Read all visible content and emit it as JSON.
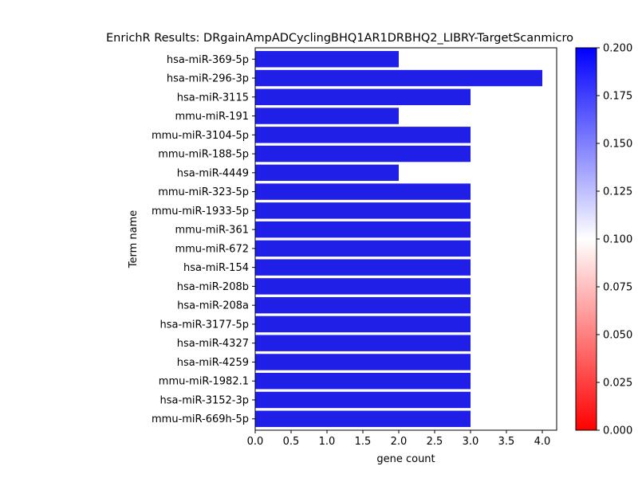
{
  "chart_data": {
    "type": "bar",
    "orientation": "horizontal",
    "title": "EnrichR Results: DRgainAmpADCyclingBHQ1AR1DRBHQ2_LIBRY-TargetScanmicro",
    "xlabel": "gene count",
    "ylabel": "Term name",
    "xlim": [
      0,
      4.2
    ],
    "xticks": [
      "0.0",
      "0.5",
      "1.0",
      "1.5",
      "2.0",
      "2.5",
      "3.0",
      "3.5",
      "4.0"
    ],
    "categories": [
      "hsa-miR-369-5p",
      "hsa-miR-296-3p",
      "hsa-miR-3115",
      "mmu-miR-191",
      "mmu-miR-3104-5p",
      "mmu-miR-188-5p",
      "hsa-miR-4449",
      "mmu-miR-323-5p",
      "mmu-miR-1933-5p",
      "mmu-miR-361",
      "mmu-miR-672",
      "hsa-miR-154",
      "hsa-miR-208b",
      "hsa-miR-208a",
      "hsa-miR-3177-5p",
      "hsa-miR-4327",
      "hsa-miR-4259",
      "mmu-miR-1982.1",
      "hsa-miR-3152-3p",
      "mmu-miR-669h-5p"
    ],
    "values": [
      2,
      4,
      3,
      2,
      3,
      3,
      2,
      3,
      3,
      3,
      3,
      3,
      3,
      3,
      3,
      3,
      3,
      3,
      3,
      3
    ],
    "bar_color": "#1f1fe8",
    "colorbar": {
      "range": [
        0.0,
        0.2
      ],
      "ticks": [
        "0.000",
        "0.025",
        "0.050",
        "0.075",
        "0.100",
        "0.125",
        "0.150",
        "0.175",
        "0.200"
      ],
      "colors": {
        "low": "#ff0000",
        "mid": "#ffffff",
        "high": "#0000ff"
      }
    },
    "grid": false
  }
}
